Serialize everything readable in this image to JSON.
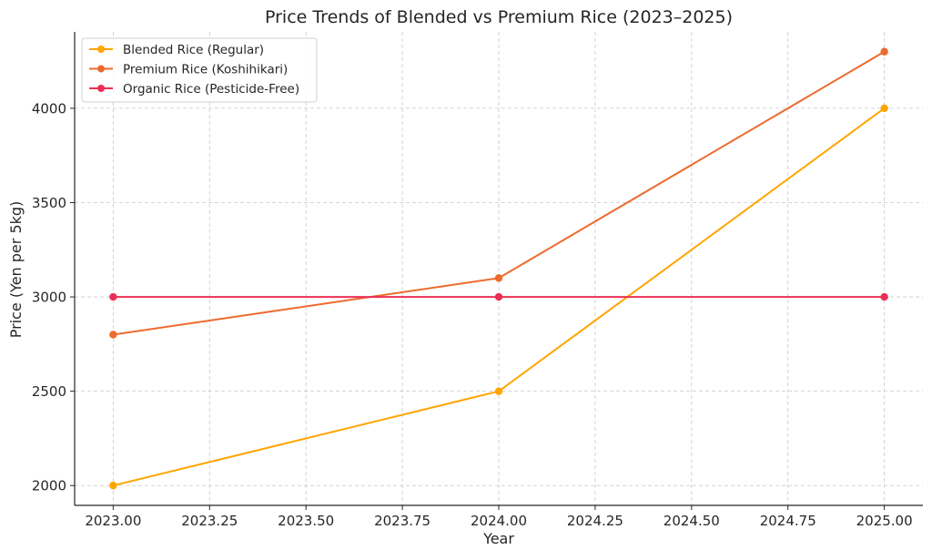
{
  "chart_data": {
    "type": "line",
    "title": "Price Trends of Blended vs Premium Rice (2023–2025)",
    "xlabel": "Year",
    "ylabel": "Price (Yen per 5kg)",
    "x": [
      2023,
      2024,
      2025
    ],
    "xlim": [
      2022.9,
      2025.1
    ],
    "ylim": [
      1895,
      4405
    ],
    "x_ticks": [
      2023.0,
      2023.25,
      2023.5,
      2023.75,
      2024.0,
      2024.25,
      2024.5,
      2024.75,
      2025.0
    ],
    "x_tick_labels": [
      "2023.00",
      "2023.25",
      "2023.50",
      "2023.75",
      "2024.00",
      "2024.25",
      "2024.50",
      "2024.75",
      "2025.00"
    ],
    "y_ticks": [
      2000,
      2500,
      3000,
      3500,
      4000
    ],
    "y_tick_labels": [
      "2000",
      "2500",
      "3000",
      "3500",
      "4000"
    ],
    "grid": true,
    "legend_position": "top-left",
    "series": [
      {
        "name": "Blended Rice (Regular)",
        "values": [
          2000,
          2500,
          4000
        ],
        "color": "#FFA500"
      },
      {
        "name": "Premium Rice (Koshihikari)",
        "values": [
          2800,
          3100,
          4300
        ],
        "color": "#ED6A2D"
      },
      {
        "name": "Organic Rice (Pesticide-Free)",
        "values": [
          3000,
          3000,
          3000
        ],
        "color": "#EB2F54"
      }
    ]
  }
}
